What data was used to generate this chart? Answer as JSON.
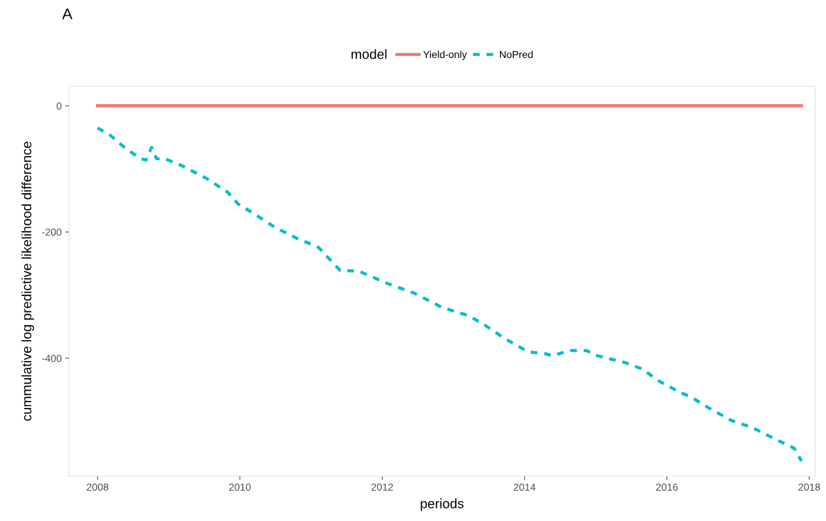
{
  "chart_data": {
    "type": "line",
    "title": "A",
    "xlabel": "periods",
    "ylabel": "cummulative log predictive likelihood difference",
    "legend_title": "model",
    "legend": "top",
    "xlim": [
      2007.6,
      2018.08
    ],
    "xticks": [
      2008,
      2010,
      2012,
      2014,
      2016,
      2018
    ],
    "ylim": [
      -587,
      31
    ],
    "yticks": [
      0,
      -200,
      -400
    ],
    "grid": false,
    "series": [
      {
        "name": "Yield-only",
        "color": "#f8766d",
        "line_style": "solid",
        "x": [
          2008.0,
          2017.89
        ],
        "values": [
          0,
          0
        ]
      },
      {
        "name": "NoPred",
        "color": "#00bfc4",
        "line_style": "dashed",
        "x": [
          2008.0,
          2008.17,
          2008.4,
          2008.61,
          2008.68,
          2008.76,
          2008.83,
          2008.95,
          2009.19,
          2009.53,
          2009.83,
          2009.97,
          2010.21,
          2010.5,
          2010.8,
          2011.1,
          2011.41,
          2011.67,
          2012.06,
          2012.45,
          2012.83,
          2013.22,
          2013.42,
          2013.71,
          2014.05,
          2014.29,
          2014.39,
          2014.63,
          2014.87,
          2015.02,
          2015.41,
          2015.65,
          2015.9,
          2016.18,
          2016.33,
          2016.62,
          2016.91,
          2017.2,
          2017.5,
          2017.79,
          2017.89
        ],
        "values": [
          -35,
          -46,
          -68,
          -84,
          -86,
          -66,
          -84,
          -84,
          -95,
          -115,
          -137,
          -155,
          -172,
          -193,
          -210,
          -224,
          -261,
          -262,
          -281,
          -297,
          -319,
          -333,
          -346,
          -368,
          -390,
          -393,
          -396,
          -388,
          -388,
          -396,
          -407,
          -417,
          -437,
          -454,
          -461,
          -481,
          -499,
          -510,
          -527,
          -543,
          -563
        ]
      }
    ]
  }
}
